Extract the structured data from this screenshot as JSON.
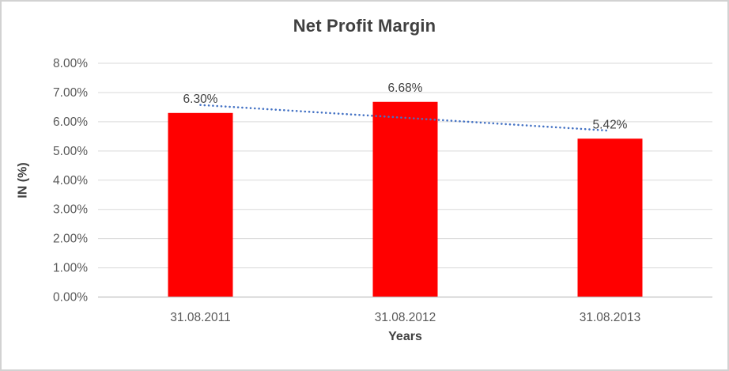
{
  "chart_data": {
    "type": "bar",
    "title": "Net Profit Margin",
    "xlabel": "Years",
    "ylabel": "IN (%)",
    "categories": [
      "31.08.2011",
      "31.08.2012",
      "31.08.2013"
    ],
    "values": [
      6.3,
      6.68,
      5.42
    ],
    "data_labels": [
      "6.30%",
      "6.68%",
      "5.42%"
    ],
    "ylim": [
      0,
      8
    ],
    "ytick_step": 1,
    "ytick_labels": [
      "0.00%",
      "1.00%",
      "2.00%",
      "3.00%",
      "4.00%",
      "5.00%",
      "6.00%",
      "7.00%",
      "8.00%"
    ],
    "grid": true,
    "legend": "none",
    "bar_color": "#FF0000",
    "trendline": {
      "type": "linear",
      "style": "dotted",
      "color": "#4472C4"
    },
    "colors": {
      "title_text": "#404040",
      "label_text": "#404040",
      "axis_text": "#595959",
      "gridline": "#D9D9D9",
      "axis_line": "#C0C0C0",
      "background": "#FFFFFF",
      "frame_border": "#D2D2D2"
    }
  }
}
